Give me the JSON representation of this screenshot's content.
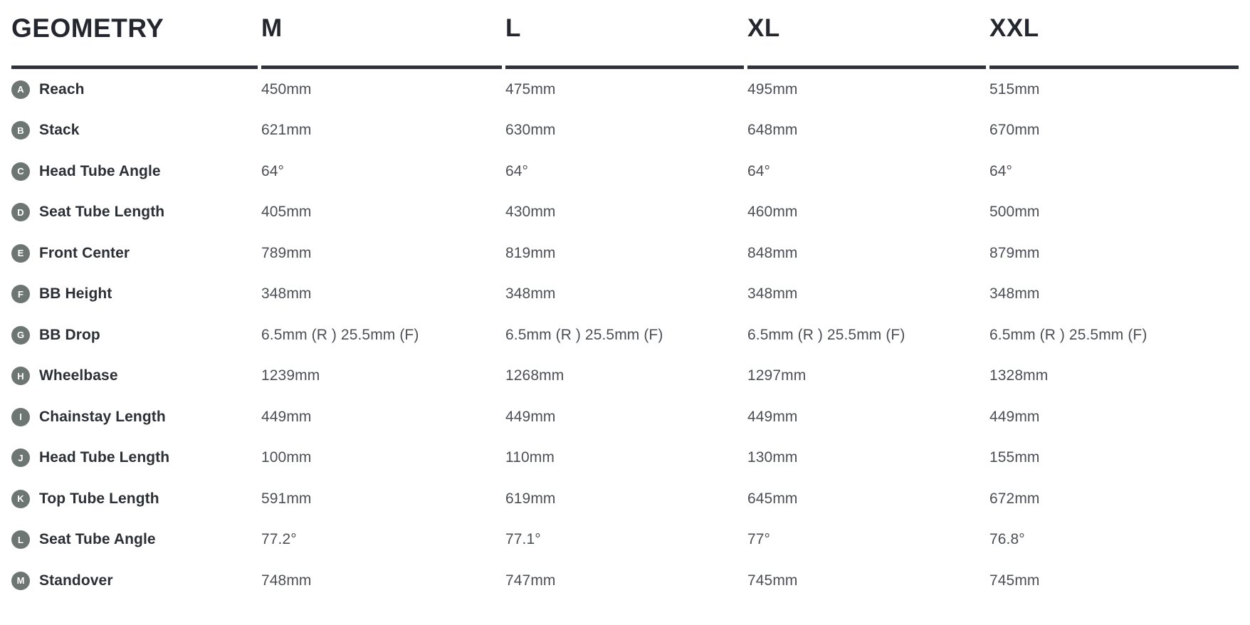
{
  "colors": {
    "title": "#24272e",
    "header_rule": "#2f333b",
    "row_label": "#2b2f36",
    "row_value": "#4c4f55",
    "badge_background": "#6e7674",
    "badge_letter": "#ffffff",
    "page_background": "#ffffff"
  },
  "table": {
    "title": "GEOMETRY",
    "columns": [
      "M",
      "L",
      "XL",
      "XXL"
    ],
    "rows": [
      {
        "badge": "A",
        "label": "Reach",
        "values": [
          "450mm",
          "475mm",
          "495mm",
          "515mm"
        ]
      },
      {
        "badge": "B",
        "label": "Stack",
        "values": [
          "621mm",
          "630mm",
          "648mm",
          "670mm"
        ]
      },
      {
        "badge": "C",
        "label": "Head Tube Angle",
        "values": [
          "64°",
          "64°",
          "64°",
          "64°"
        ]
      },
      {
        "badge": "D",
        "label": "Seat Tube Length",
        "values": [
          "405mm",
          "430mm",
          "460mm",
          "500mm"
        ]
      },
      {
        "badge": "E",
        "label": "Front Center",
        "values": [
          "789mm",
          "819mm",
          "848mm",
          "879mm"
        ]
      },
      {
        "badge": "F",
        "label": "BB Height",
        "values": [
          "348mm",
          "348mm",
          "348mm",
          "348mm"
        ]
      },
      {
        "badge": "G",
        "label": "BB Drop",
        "values": [
          "6.5mm (R ) 25.5mm (F)",
          "6.5mm (R ) 25.5mm (F)",
          "6.5mm (R ) 25.5mm (F)",
          "6.5mm (R ) 25.5mm (F)"
        ]
      },
      {
        "badge": "H",
        "label": "Wheelbase",
        "values": [
          "1239mm",
          "1268mm",
          "1297mm",
          "1328mm"
        ]
      },
      {
        "badge": "I",
        "label": "Chainstay Length",
        "values": [
          "449mm",
          "449mm",
          "449mm",
          "449mm"
        ]
      },
      {
        "badge": "J",
        "label": "Head Tube Length",
        "values": [
          "100mm",
          "110mm",
          "130mm",
          "155mm"
        ]
      },
      {
        "badge": "K",
        "label": "Top Tube Length",
        "values": [
          "591mm",
          "619mm",
          "645mm",
          "672mm"
        ]
      },
      {
        "badge": "L",
        "label": "Seat Tube Angle",
        "values": [
          "77.2°",
          "77.1°",
          "77°",
          "76.8°"
        ]
      },
      {
        "badge": "M",
        "label": "Standover",
        "values": [
          "748mm",
          "747mm",
          "745mm",
          "745mm"
        ]
      }
    ]
  }
}
